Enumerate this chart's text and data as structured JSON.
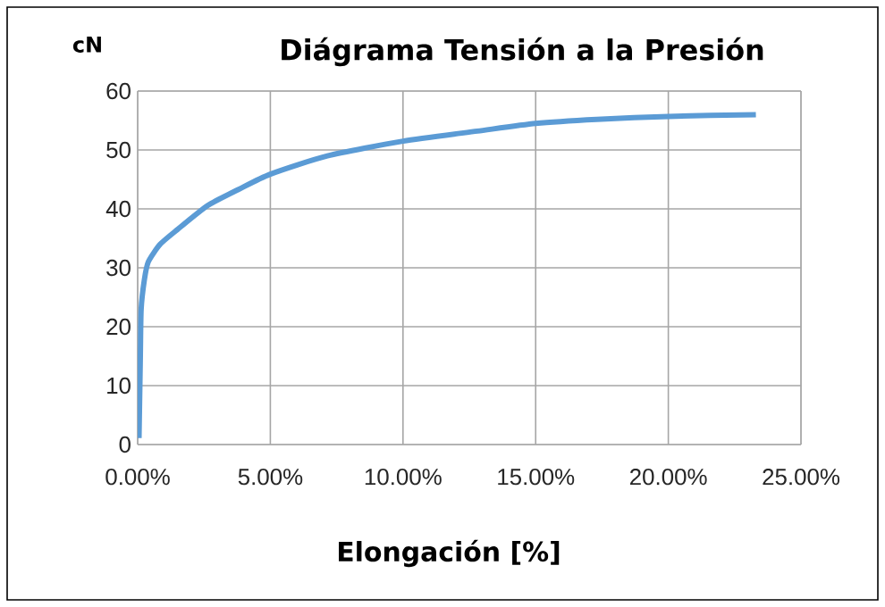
{
  "chart_data": {
    "type": "line",
    "title": "Diágrama Tensión a la Presión",
    "xlabel": "Elongación [%]",
    "ylabel": "cN",
    "x": [
      0.05,
      0.1,
      0.13,
      0.25,
      0.4,
      0.85,
      1.5,
      2.65,
      3.8,
      5.0,
      7.15,
      10.0,
      12.8,
      15.0,
      17.3,
      20.0,
      23.3
    ],
    "series": [
      {
        "color": "#5b9bd5",
        "values": [
          1.1,
          14.8,
          22.9,
          27.9,
          31,
          34,
          36.5,
          40.6,
          43.3,
          45.9,
          49,
          51.5,
          53.2,
          54.5,
          55.2,
          55.7,
          56.0
        ]
      }
    ],
    "xlim": [
      0,
      25
    ],
    "ylim": [
      0,
      60
    ],
    "xticks": [
      {
        "value": 0,
        "label": "0.00%"
      },
      {
        "value": 5,
        "label": "5.00%"
      },
      {
        "value": 10,
        "label": "10.00%"
      },
      {
        "value": 15,
        "label": "15.00%"
      },
      {
        "value": 20,
        "label": "20.00%"
      },
      {
        "value": 25,
        "label": "25.00%"
      }
    ],
    "yticks": [
      0,
      10,
      20,
      30,
      40,
      50,
      60
    ],
    "grid": true,
    "marker": "none",
    "line_style": "solid"
  }
}
